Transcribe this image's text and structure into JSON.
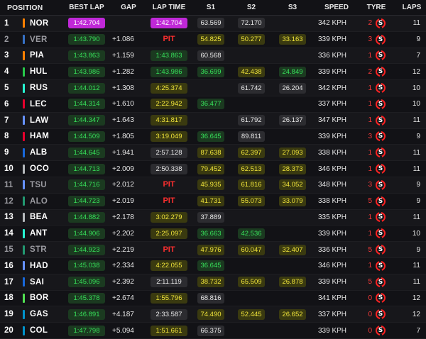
{
  "header": {
    "position": "POSITION",
    "best_lap": "BEST LAP",
    "gap": "GAP",
    "lap_time": "LAP TIME",
    "s1": "S1",
    "s2": "S2",
    "s3": "S3",
    "speed": "SPEED",
    "tyre": "TYRE",
    "laps": "LAPS"
  },
  "colors": {
    "pill_green_text": "#37e05a",
    "pill_yellow_text": "#f1e53b",
    "pill_purple": "#c028d8",
    "pit_red": "#ff2f2f",
    "tyre_soft_red": "#ff2222"
  },
  "rows": [
    {
      "pos": "1",
      "driver": "NOR",
      "team_color": "#ff8000",
      "best": "1:42.704",
      "best_style": "pb-purple-hi",
      "gap": "",
      "lap": "1:42.704",
      "lap_style": "lap-purple",
      "s1": "63.569",
      "s1_style": "sec-white",
      "s2": "72.170",
      "s2_style": "sec-white",
      "s3": "",
      "s3_style": "",
      "speed": "342 KPH",
      "tyre_age": "2",
      "tyre": "S",
      "tyre_icon": "soft-tyre-icon",
      "laps": "11",
      "dim": false
    },
    {
      "pos": "2",
      "driver": "VER",
      "team_color": "#3671c6",
      "best": "1:43.790",
      "best_style": "pb-green",
      "gap": "+1.086",
      "lap": "PIT",
      "lap_style": "pit",
      "s1": "",
      "s1_style": "",
      "s2": "54.825",
      "s2_style": "sec-yellow",
      "s3": "50.277",
      "s3_style": "sec-yellow",
      "s3b": "33.163",
      "speed": "339 KPH",
      "tyre_age": "3",
      "tyre": "S",
      "tyre_icon": "soft-tyre-icon",
      "laps": "9",
      "dim": true
    },
    {
      "pos": "3",
      "driver": "PIA",
      "team_color": "#ff8000",
      "best": "1:43.863",
      "best_style": "pb-green",
      "gap": "+1.159",
      "lap": "1:43.863",
      "lap_style": "lap-green",
      "s1": "60.568",
      "s1_style": "sec-white",
      "s2": "",
      "s2_style": "",
      "s3": "",
      "s3_style": "",
      "speed": "336 KPH",
      "tyre_age": "1",
      "tyre": "S",
      "tyre_icon": "soft-tyre-icon",
      "laps": "7",
      "dim": false
    },
    {
      "pos": "4",
      "driver": "HUL",
      "team_color": "#27c94a",
      "best": "1:43.986",
      "best_style": "pb-green",
      "gap": "+1.282",
      "lap": "1:43.986",
      "lap_style": "lap-green",
      "s1": "36.699",
      "s1_style": "sec-green",
      "s2": "42.438",
      "s2_style": "sec-yellow",
      "s3": "24.849",
      "s3_style": "sec-green",
      "speed": "339 KPH",
      "tyre_age": "2",
      "tyre": "S",
      "tyre_icon": "soft-tyre-icon",
      "laps": "12",
      "dim": false
    },
    {
      "pos": "5",
      "driver": "RUS",
      "team_color": "#27f4d2",
      "best": "1:44.012",
      "best_style": "pb-green",
      "gap": "+1.308",
      "lap": "4:25.374",
      "lap_style": "lap-yellow",
      "s1": "",
      "s1_style": "",
      "s2": "61.742",
      "s2_style": "sec-white",
      "s3": "26.204",
      "s3_style": "sec-white",
      "speed": "342 KPH",
      "tyre_age": "1",
      "tyre": "S",
      "tyre_icon": "soft-tyre-icon",
      "laps": "10",
      "dim": false
    },
    {
      "pos": "6",
      "driver": "LEC",
      "team_color": "#e8002d",
      "best": "1:44.314",
      "best_style": "pb-green",
      "gap": "+1.610",
      "lap": "2:22.942",
      "lap_style": "lap-yellow",
      "s1": "36.477",
      "s1_style": "sec-green",
      "s2": "",
      "s2_style": "",
      "s3": "",
      "s3_style": "",
      "speed": "337 KPH",
      "tyre_age": "1",
      "tyre": "S",
      "tyre_icon": "soft-tyre-icon",
      "laps": "10",
      "dim": false
    },
    {
      "pos": "7",
      "driver": "LAW",
      "team_color": "#6692ff",
      "best": "1:44.347",
      "best_style": "pb-green",
      "gap": "+1.643",
      "lap": "4:31.817",
      "lap_style": "lap-yellow",
      "s1": "",
      "s1_style": "",
      "s2": "61.792",
      "s2_style": "sec-white",
      "s3": "26.137",
      "s3_style": "sec-white",
      "speed": "347 KPH",
      "tyre_age": "1",
      "tyre": "S",
      "tyre_icon": "soft-tyre-icon",
      "laps": "11",
      "dim": false
    },
    {
      "pos": "8",
      "driver": "HAM",
      "team_color": "#e8002d",
      "best": "1:44.509",
      "best_style": "pb-green",
      "gap": "+1.805",
      "lap": "3:19.049",
      "lap_style": "lap-yellow",
      "s1": "36.645",
      "s1_style": "sec-green",
      "s2": "89.811",
      "s2_style": "sec-white",
      "s3": "",
      "s3_style": "",
      "speed": "339 KPH",
      "tyre_age": "3",
      "tyre": "S",
      "tyre_icon": "soft-tyre-icon",
      "laps": "9",
      "dim": false
    },
    {
      "pos": "9",
      "driver": "ALB",
      "team_color": "#1868db",
      "best": "1:44.645",
      "best_style": "pb-green",
      "gap": "+1.941",
      "lap": "2:57.128",
      "lap_style": "lap-white",
      "s1": "87.638",
      "s1_style": "sec-yellow",
      "s2": "62.397",
      "s2_style": "sec-yellow",
      "s3": "27.093",
      "s3_style": "sec-yellow",
      "speed": "338 KPH",
      "tyre_age": "1",
      "tyre": "S",
      "tyre_icon": "soft-tyre-icon",
      "laps": "11",
      "dim": false
    },
    {
      "pos": "10",
      "driver": "OCO",
      "team_color": "#b6babd",
      "best": "1:44.713",
      "best_style": "pb-green",
      "gap": "+2.009",
      "lap": "2:50.338",
      "lap_style": "lap-white",
      "s1": "79.452",
      "s1_style": "sec-yellow",
      "s2": "62.513",
      "s2_style": "sec-yellow",
      "s3": "28.373",
      "s3_style": "sec-yellow",
      "speed": "346 KPH",
      "tyre_age": "1",
      "tyre": "S",
      "tyre_icon": "soft-tyre-icon",
      "laps": "11",
      "dim": false
    },
    {
      "pos": "11",
      "driver": "TSU",
      "team_color": "#6692ff",
      "best": "1:44.716",
      "best_style": "pb-green",
      "gap": "+2.012",
      "lap": "PIT",
      "lap_style": "pit",
      "s1": "45.935",
      "s1_style": "sec-yellow",
      "s2": "61.816",
      "s2_style": "sec-yellow",
      "s3": "34.052",
      "s3_style": "sec-yellow",
      "speed": "348 KPH",
      "tyre_age": "3",
      "tyre": "S",
      "tyre_icon": "soft-tyre-icon",
      "laps": "9",
      "dim": true
    },
    {
      "pos": "12",
      "driver": "ALO",
      "team_color": "#229971",
      "best": "1:44.723",
      "best_style": "pb-green",
      "gap": "+2.019",
      "lap": "PIT",
      "lap_style": "pit",
      "s1": "41.731",
      "s1_style": "sec-yellow",
      "s2": "55.073",
      "s2_style": "sec-yellow",
      "s3": "33.079",
      "s3_style": "sec-yellow",
      "speed": "338 KPH",
      "tyre_age": "5",
      "tyre": "S",
      "tyre_icon": "soft-tyre-icon",
      "laps": "9",
      "dim": true
    },
    {
      "pos": "13",
      "driver": "BEA",
      "team_color": "#b6babd",
      "best": "1:44.882",
      "best_style": "pb-green",
      "gap": "+2.178",
      "lap": "3:02.279",
      "lap_style": "lap-yellow",
      "s1": "37.889",
      "s1_style": "sec-white",
      "s2": "",
      "s2_style": "",
      "s3": "",
      "s3_style": "",
      "speed": "335 KPH",
      "tyre_age": "1",
      "tyre": "S",
      "tyre_icon": "soft-tyre-icon",
      "laps": "11",
      "dim": false
    },
    {
      "pos": "14",
      "driver": "ANT",
      "team_color": "#27f4d2",
      "best": "1:44.906",
      "best_style": "pb-green",
      "gap": "+2.202",
      "lap": "2:25.097",
      "lap_style": "lap-yellow",
      "s1": "36.663",
      "s1_style": "sec-green",
      "s2": "42.536",
      "s2_style": "sec-green",
      "s3": "",
      "s3_style": "",
      "speed": "339 KPH",
      "tyre_age": "1",
      "tyre": "S",
      "tyre_icon": "soft-tyre-icon",
      "laps": "10",
      "dim": false
    },
    {
      "pos": "15",
      "driver": "STR",
      "team_color": "#229971",
      "best": "1:44.923",
      "best_style": "pb-green",
      "gap": "+2.219",
      "lap": "PIT",
      "lap_style": "pit",
      "s1": "47.976",
      "s1_style": "sec-yellow",
      "s2": "60.047",
      "s2_style": "sec-yellow",
      "s3": "32.407",
      "s3_style": "sec-yellow",
      "speed": "336 KPH",
      "tyre_age": "5",
      "tyre": "S",
      "tyre_icon": "soft-tyre-icon",
      "laps": "9",
      "dim": true
    },
    {
      "pos": "16",
      "driver": "HAD",
      "team_color": "#6692ff",
      "best": "1:45.038",
      "best_style": "pb-green",
      "gap": "+2.334",
      "lap": "4:22.055",
      "lap_style": "lap-yellow",
      "s1": "36.645",
      "s1_style": "sec-green",
      "s2": "",
      "s2_style": "",
      "s3": "",
      "s3_style": "",
      "speed": "346 KPH",
      "tyre_age": "1",
      "tyre": "S",
      "tyre_icon": "soft-tyre-icon",
      "laps": "11",
      "dim": false
    },
    {
      "pos": "17",
      "driver": "SAI",
      "team_color": "#1868db",
      "best": "1:45.096",
      "best_style": "pb-green",
      "gap": "+2.392",
      "lap": "2:11.119",
      "lap_style": "lap-white",
      "s1": "38.732",
      "s1_style": "sec-yellow",
      "s2": "65.509",
      "s2_style": "sec-yellow",
      "s3": "26.878",
      "s3_style": "sec-yellow",
      "speed": "339 KPH",
      "tyre_age": "5",
      "tyre": "S",
      "tyre_icon": "soft-tyre-icon",
      "laps": "11",
      "dim": false
    },
    {
      "pos": "18",
      "driver": "BOR",
      "team_color": "#52e252",
      "best": "1:45.378",
      "best_style": "pb-green",
      "gap": "+2.674",
      "lap": "1:55.796",
      "lap_style": "lap-yellow",
      "s1": "68.816",
      "s1_style": "sec-white",
      "s2": "",
      "s2_style": "",
      "s3": "",
      "s3_style": "",
      "speed": "341 KPH",
      "tyre_age": "0",
      "tyre": "S",
      "tyre_icon": "soft-tyre-icon",
      "laps": "12",
      "dim": false
    },
    {
      "pos": "19",
      "driver": "GAS",
      "team_color": "#0093cc",
      "best": "1:46.891",
      "best_style": "pb-green",
      "gap": "+4.187",
      "lap": "2:33.587",
      "lap_style": "lap-white",
      "s1": "74.490",
      "s1_style": "sec-yellow",
      "s2": "52.445",
      "s2_style": "sec-yellow",
      "s3": "26.652",
      "s3_style": "sec-yellow",
      "speed": "337 KPH",
      "tyre_age": "0",
      "tyre": "S",
      "tyre_icon": "soft-tyre-icon",
      "laps": "12",
      "dim": false
    },
    {
      "pos": "20",
      "driver": "COL",
      "team_color": "#0093cc",
      "best": "1:47.798",
      "best_style": "pb-green",
      "gap": "+5.094",
      "lap": "1:51.661",
      "lap_style": "lap-yellow",
      "s1": "66.375",
      "s1_style": "sec-white",
      "s2": "",
      "s2_style": "",
      "s3": "",
      "s3_style": "",
      "speed": "339 KPH",
      "tyre_age": "0",
      "tyre": "S",
      "tyre_icon": "soft-tyre-icon",
      "laps": "7",
      "dim": false
    }
  ]
}
